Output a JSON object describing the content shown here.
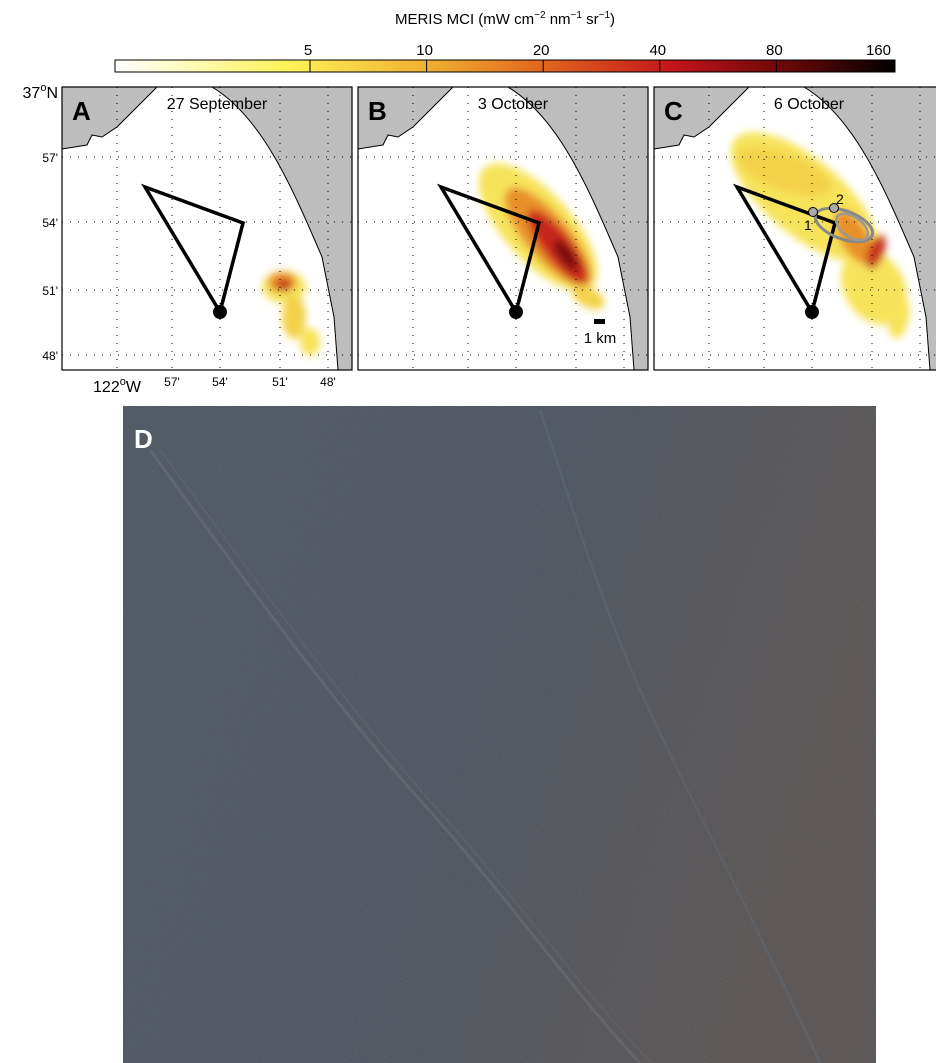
{
  "colorbar": {
    "title_parts": [
      "MERIS MCI (mW cm",
      "−2",
      " nm",
      "−1",
      " sr",
      "−1",
      ")"
    ],
    "ticks": [
      5,
      10,
      20,
      40,
      80,
      160
    ]
  },
  "panels": [
    {
      "letter": "A",
      "date": "27 September"
    },
    {
      "letter": "B",
      "date": "3 October"
    },
    {
      "letter": "C",
      "date": "6 October"
    }
  ],
  "latitude_labels": {
    "top": [
      "37",
      "o",
      "N"
    ],
    "ticks": [
      "57'",
      "54'",
      "51'",
      "48'"
    ]
  },
  "longitude_labels": {
    "first": [
      "122",
      "o",
      "W"
    ],
    "ticks": [
      "57'",
      "54'",
      "51'",
      "48'"
    ]
  },
  "scale_bar": "1 km",
  "stations": [
    "1",
    "2"
  ],
  "photo": {
    "letter": "D"
  }
}
